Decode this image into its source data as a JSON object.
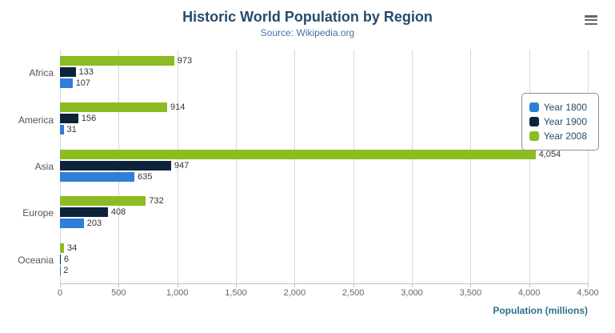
{
  "chart_data": {
    "type": "bar",
    "orientation": "horizontal",
    "title": "Historic World Population by Region",
    "subtitle": "Source: Wikipedia.org",
    "categories": [
      "Africa",
      "America",
      "Asia",
      "Europe",
      "Oceania"
    ],
    "series": [
      {
        "name": "Year 1800",
        "color": "#2f7ed8",
        "values": [
          107,
          31,
          635,
          203,
          2
        ],
        "value_labels": [
          "107",
          "31",
          "635",
          "203",
          "2"
        ]
      },
      {
        "name": "Year 1900",
        "color": "#0d233a",
        "values": [
          133,
          156,
          947,
          408,
          6
        ],
        "value_labels": [
          "133",
          "156",
          "947",
          "408",
          "6"
        ]
      },
      {
        "name": "Year 2008",
        "color": "#8bbc21",
        "values": [
          973,
          914,
          4054,
          732,
          34
        ],
        "value_labels": [
          "973",
          "914",
          "4,054",
          "732",
          "34"
        ]
      }
    ],
    "xlabel": "Population (millions)",
    "xlim": [
      0,
      4500
    ],
    "ticks": [
      {
        "value": 0,
        "label": "0"
      },
      {
        "value": 500,
        "label": "500"
      },
      {
        "value": 1000,
        "label": "1,000"
      },
      {
        "value": 1500,
        "label": "1,500"
      },
      {
        "value": 2000,
        "label": "2,000"
      },
      {
        "value": 2500,
        "label": "2,500"
      },
      {
        "value": 3000,
        "label": "3,000"
      },
      {
        "value": 3500,
        "label": "3,500"
      },
      {
        "value": 4000,
        "label": "4,000"
      },
      {
        "value": 4500,
        "label": "4,500"
      }
    ],
    "legend": {
      "position": "right",
      "items": [
        "Year 1800",
        "Year 1900",
        "Year 2008"
      ]
    },
    "grid": true
  }
}
